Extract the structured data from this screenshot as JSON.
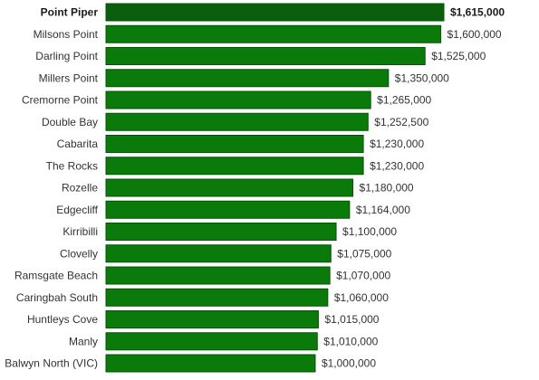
{
  "chart_data": {
    "type": "bar",
    "orientation": "horizontal",
    "title": "",
    "xlabel": "",
    "ylabel": "",
    "xlim": [
      0,
      1615000
    ],
    "grid": false,
    "legend": "none",
    "categories": [
      "Point Piper",
      "Milsons Point",
      "Darling Point",
      "Millers Point",
      "Cremorne Point",
      "Double Bay",
      "Cabarita",
      "The Rocks",
      "Rozelle",
      "Edgecliff",
      "Kirribilli",
      "Clovelly",
      "Ramsgate Beach",
      "Caringbah South",
      "Huntleys Cove",
      "Manly",
      "Balwyn North (VIC)"
    ],
    "values": [
      1615000,
      1600000,
      1525000,
      1350000,
      1265000,
      1252500,
      1230000,
      1230000,
      1180000,
      1164000,
      1100000,
      1075000,
      1070000,
      1060000,
      1015000,
      1010000,
      1000000
    ],
    "value_labels": [
      "$1,615,000",
      "$1,600,000",
      "$1,525,000",
      "$1,350,000",
      "$1,265,000",
      "$1,252,500",
      "$1,230,000",
      "$1,230,000",
      "$1,180,000",
      "$1,164,000",
      "$1,100,000",
      "$1,075,000",
      "$1,070,000",
      "$1,060,000",
      "$1,015,000",
      "$1,010,000",
      "$1,000,000"
    ],
    "highlight_index": 0,
    "colors": {
      "bar": "#0a7a0a",
      "bar_border": "#005500",
      "bar_highlight": "#0b5e0b"
    }
  }
}
